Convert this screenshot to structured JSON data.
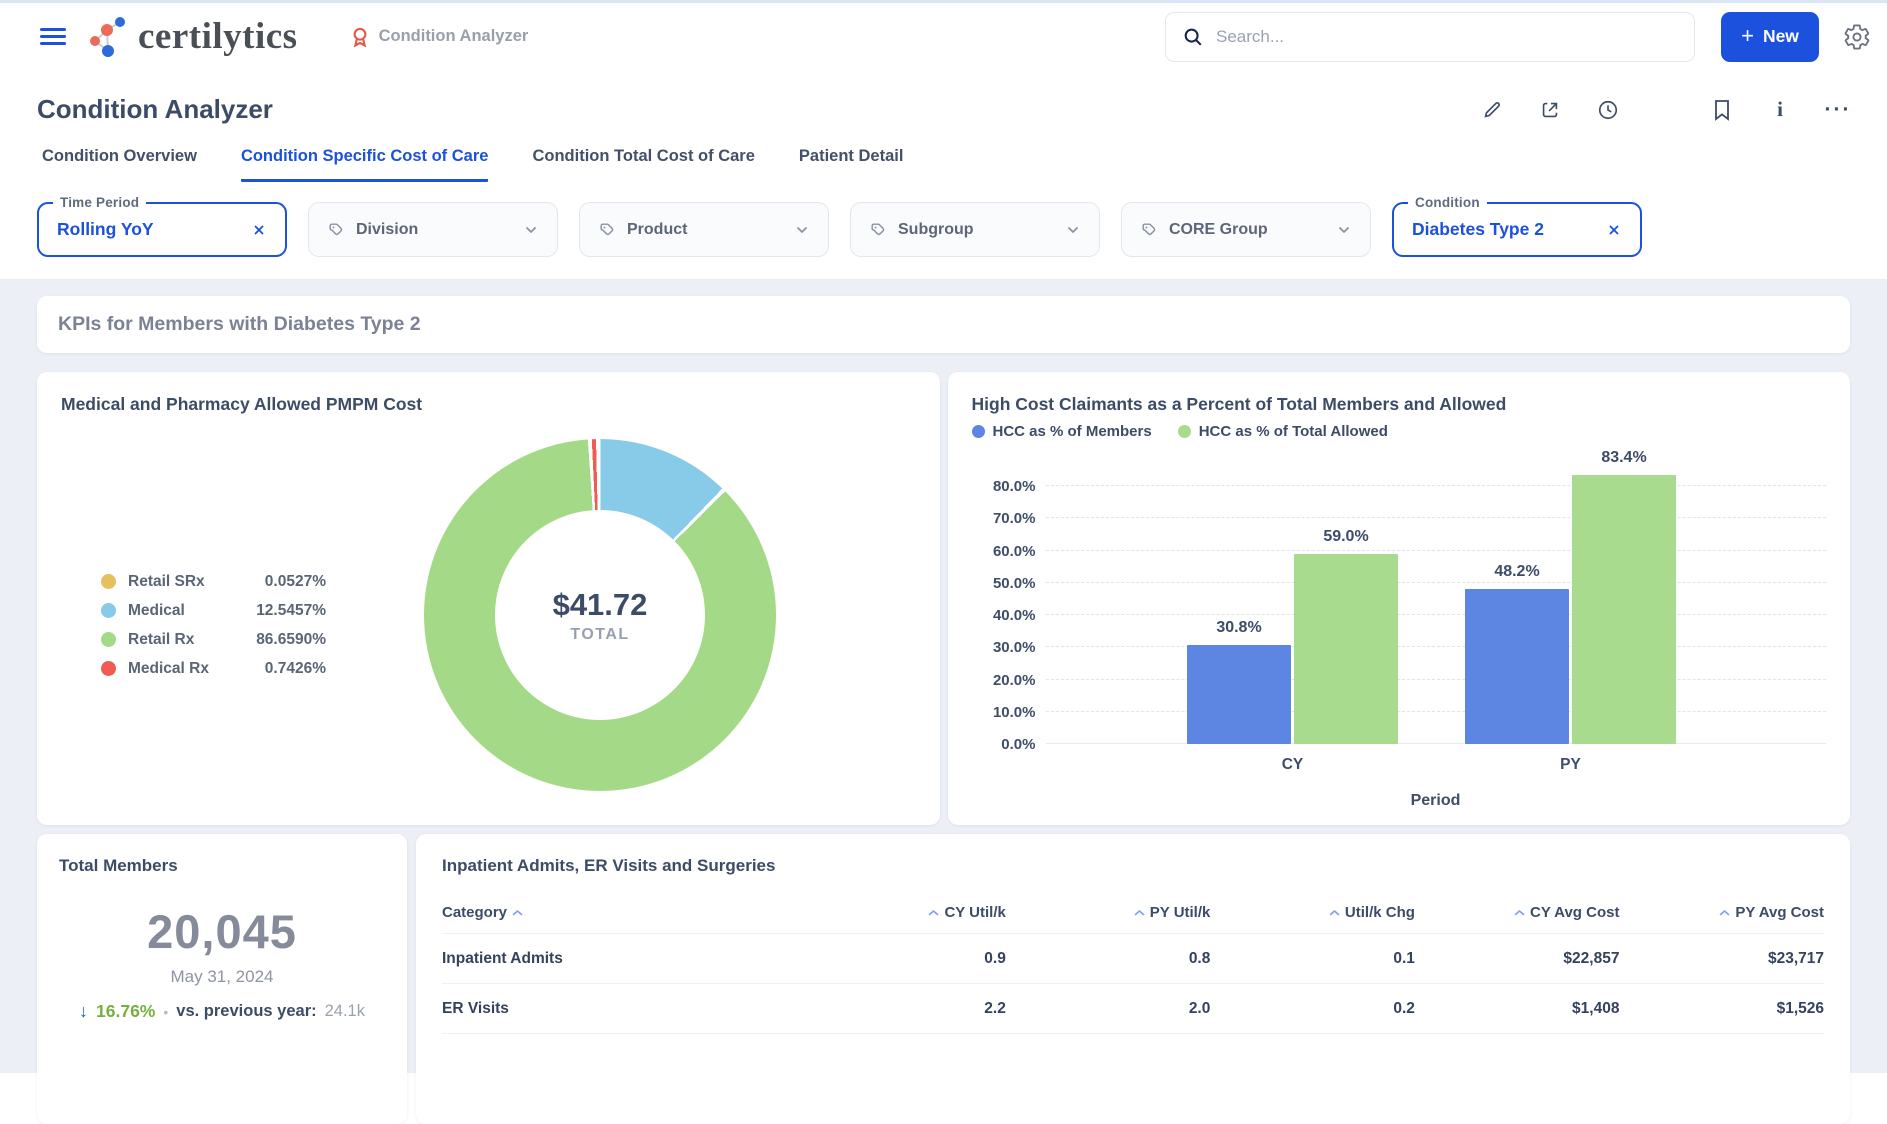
{
  "colors": {
    "accent": "#1b51dc",
    "positive_green": "#76b041",
    "arrow_blue": "#2356d9",
    "slate_text": "#3d4c66",
    "page_bg": "#edeff6"
  },
  "header": {
    "brand": "certilytics",
    "breadcrumb": "Condition Analyzer",
    "search_placeholder": "Search...",
    "new_label": "New"
  },
  "page": {
    "title": "Condition Analyzer",
    "tabs": [
      {
        "label": "Condition Overview",
        "active": false
      },
      {
        "label": "Condition Specific Cost of Care",
        "active": true
      },
      {
        "label": "Condition Total Cost of Care",
        "active": false
      },
      {
        "label": "Patient Detail",
        "active": false
      }
    ],
    "filters": [
      {
        "label": "Time Period",
        "value": "Rolling YoY",
        "active": true
      },
      {
        "label": "Division",
        "active": false
      },
      {
        "label": "Product",
        "active": false
      },
      {
        "label": "Subgroup",
        "active": false
      },
      {
        "label": "CORE Group",
        "active": false
      },
      {
        "label": "Condition",
        "value": "Diabetes Type 2",
        "active": true
      }
    ],
    "section_title": "KPIs for Members with Diabetes Type 2"
  },
  "chart_data": [
    {
      "type": "donut",
      "title": "Medical and Pharmacy Allowed PMPM Cost",
      "center_value": "$41.72",
      "center_label": "TOTAL",
      "slices": [
        {
          "label": "Retail SRx",
          "value": 0.0527,
          "display": "0.0527%",
          "color": "#e4c05e"
        },
        {
          "label": "Medical",
          "value": 12.5457,
          "display": "12.5457%",
          "color": "#87cbe9"
        },
        {
          "label": "Retail Rx",
          "value": 86.659,
          "display": "86.6590%",
          "color": "#a4d987"
        },
        {
          "label": "Medical Rx",
          "value": 0.7426,
          "display": "0.7426%",
          "color": "#f05c54"
        }
      ]
    },
    {
      "type": "bar",
      "title": "High Cost Claimants as a Percent of Total Members and Allowed",
      "categories": [
        "CY",
        "PY"
      ],
      "series": [
        {
          "name": "HCC as % of Members",
          "color": "#5c86e2",
          "values": [
            30.8,
            48.2
          ],
          "values_display": [
            "30.8%",
            "48.2%"
          ]
        },
        {
          "name": "HCC as % of Total Allowed",
          "color": "#a8db8d",
          "values": [
            59.0,
            83.4
          ],
          "values_display": [
            "59.0%",
            "83.4%"
          ]
        }
      ],
      "xlabel": "Period",
      "ylim": [
        0,
        88
      ],
      "grid": "dashed-horizontal",
      "legend_position": "top-left",
      "ytick_values": [
        0,
        10,
        20,
        30,
        40,
        50,
        60,
        70,
        80
      ],
      "ytick_labels": [
        "0.0%",
        "10.0%",
        "20.0%",
        "30.0%",
        "40.0%",
        "50.0%",
        "60.0%",
        "70.0%",
        "80.0%"
      ]
    }
  ],
  "total_members": {
    "title": "Total Members",
    "value": "20,045",
    "date": "May 31, 2024",
    "change_pct": "16.76%",
    "change_direction": "down",
    "separator": "•",
    "vs_label": "vs. previous year:",
    "vs_value": "24.1k"
  },
  "utilization_table": {
    "title": "Inpatient Admits, ER Visits and Surgeries",
    "columns": [
      {
        "label": "Category",
        "caret": "after",
        "align": "left"
      },
      {
        "label": "CY Util/k",
        "caret": "before",
        "align": "right"
      },
      {
        "label": "PY Util/k",
        "caret": "before",
        "align": "right"
      },
      {
        "label": "Util/k Chg",
        "caret": "before",
        "align": "right"
      },
      {
        "label": "CY Avg Cost",
        "caret": "before",
        "align": "right"
      },
      {
        "label": "PY Avg Cost",
        "caret": "before",
        "align": "right"
      }
    ],
    "rows": [
      [
        "Inpatient Admits",
        "0.9",
        "0.8",
        "0.1",
        "$22,857",
        "$23,717"
      ],
      [
        "ER Visits",
        "2.2",
        "2.0",
        "0.2",
        "$1,408",
        "$1,526"
      ]
    ]
  }
}
